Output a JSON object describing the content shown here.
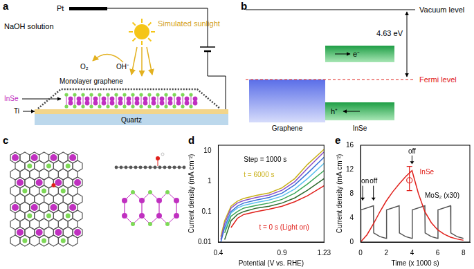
{
  "panels": {
    "a": {
      "label": "a",
      "texts": {
        "pt": "Pt",
        "light": "Simulated sunlight",
        "solution": "NaOH solution",
        "o2": "O₂",
        "oh": "OH⁻",
        "graphene": "Monolayer graphene",
        "inse": "InSe",
        "ti": "Ti",
        "quartz": "Quartz"
      }
    },
    "b": {
      "label": "b",
      "texts": {
        "vacuum": "Vacuum level",
        "work_function": "4.63 eV",
        "fermi": "Fermi level",
        "electron": "e⁻",
        "hole": "h⁺",
        "graphene": "Graphene",
        "inse": "InSe"
      }
    },
    "c": {
      "label": "c"
    }
  },
  "chart_data": [
    {
      "panel_label": "d",
      "type": "line",
      "log": "y",
      "grid": false,
      "x_label": "Potential (V vs. RHE)",
      "y_label": "Current density (mA cm⁻²)",
      "x": [
        0.42,
        0.45,
        0.5,
        0.55,
        0.6,
        0.7,
        0.8,
        0.9,
        1.0,
        1.1,
        1.23
      ],
      "series": [
        {
          "color": "#e0201b",
          "values": [
            null,
            null,
            0.03,
            0.06,
            0.08,
            0.1,
            0.12,
            0.15,
            0.21,
            0.33,
            0.7
          ]
        },
        {
          "color": "#2e6b2e",
          "values": [
            null,
            0.012,
            0.05,
            0.08,
            0.1,
            0.13,
            0.15,
            0.19,
            0.28,
            0.5,
            1.2
          ]
        },
        {
          "color": "#3aa655",
          "values": [
            null,
            0.02,
            0.07,
            0.1,
            0.13,
            0.16,
            0.19,
            0.25,
            0.4,
            0.8,
            2.2
          ]
        },
        {
          "color": "#5bc0eb",
          "values": [
            null,
            0.025,
            0.09,
            0.13,
            0.16,
            0.2,
            0.24,
            0.32,
            0.55,
            1.2,
            3.8
          ]
        },
        {
          "color": "#3a6fd8",
          "values": [
            0.01,
            0.03,
            0.1,
            0.15,
            0.19,
            0.24,
            0.29,
            0.4,
            0.75,
            1.8,
            6
          ]
        },
        {
          "color": "#8a4fc7",
          "values": [
            0.012,
            0.04,
            0.13,
            0.19,
            0.23,
            0.29,
            0.35,
            0.5,
            0.95,
            2.6,
            9
          ]
        },
        {
          "color": "#c9b018",
          "values": [
            0.015,
            0.05,
            0.15,
            0.22,
            0.27,
            0.34,
            0.41,
            0.6,
            1.2,
            3.5,
            11
          ]
        }
      ],
      "xlim": [
        0.4,
        1.23
      ],
      "xticks": [
        0.4,
        0.9,
        1.23
      ],
      "ylim": [
        0.01,
        15
      ],
      "yticks": [
        0.01,
        0.1,
        1,
        10
      ],
      "annotations": [
        {
          "text": "Step = 1000 s",
          "x": 0.6,
          "y": 5
        },
        {
          "text": "t = 6000 s",
          "x": 0.6,
          "y": 1.6,
          "color": "#c9b018"
        },
        {
          "text": "t = 0 s (Light on)",
          "x": 0.72,
          "y": 0.03,
          "color": "#e0201b"
        }
      ]
    },
    {
      "panel_label": "e",
      "type": "line",
      "grid": false,
      "x_label": "Time (x 1000 s)",
      "y_label": "Current density (mA cm⁻²)",
      "series": [
        {
          "name": "InSe",
          "color": "#e0201b",
          "x": [
            0,
            0.5,
            1,
            1.5,
            2,
            2.5,
            3,
            3.5,
            4,
            4.5,
            5,
            5.5,
            6,
            6.5,
            7,
            7.5,
            8
          ],
          "values": [
            0,
            1.2,
            3,
            5,
            6.8,
            8.3,
            9.6,
            10.8,
            11.8,
            8,
            5,
            3.2,
            2,
            1.3,
            0.8,
            0.5,
            0.3
          ],
          "error_point": {
            "x": 3.8,
            "y": 10.2,
            "low": 8.5,
            "high": 12.5
          }
        },
        {
          "name": "MoS₂ (x30)",
          "color": "#555555",
          "x": [
            0,
            0.02,
            1,
            1.02,
            1.5,
            2,
            2.02,
            3,
            3.02,
            3.5,
            4,
            4.02,
            5,
            5.02,
            5.5,
            6,
            6.02,
            7,
            7.02,
            7.5,
            8
          ],
          "values": [
            0,
            5.3,
            6,
            1.5,
            0.9,
            0.6,
            5.3,
            6,
            1.5,
            0.9,
            0.6,
            5.3,
            6,
            1.5,
            0.9,
            0.6,
            5.3,
            6,
            1.5,
            0.9,
            0.6
          ]
        }
      ],
      "xlim": [
        0,
        8.5
      ],
      "xticks": [
        0,
        2,
        4,
        6,
        8
      ],
      "ylim": [
        0,
        16
      ],
      "yticks": [
        0,
        4,
        8,
        12,
        16
      ],
      "annotations": [
        {
          "text": "on",
          "x": 0
        },
        {
          "text": "off",
          "x": 1
        },
        {
          "text": "off",
          "x": 4
        }
      ]
    }
  ]
}
